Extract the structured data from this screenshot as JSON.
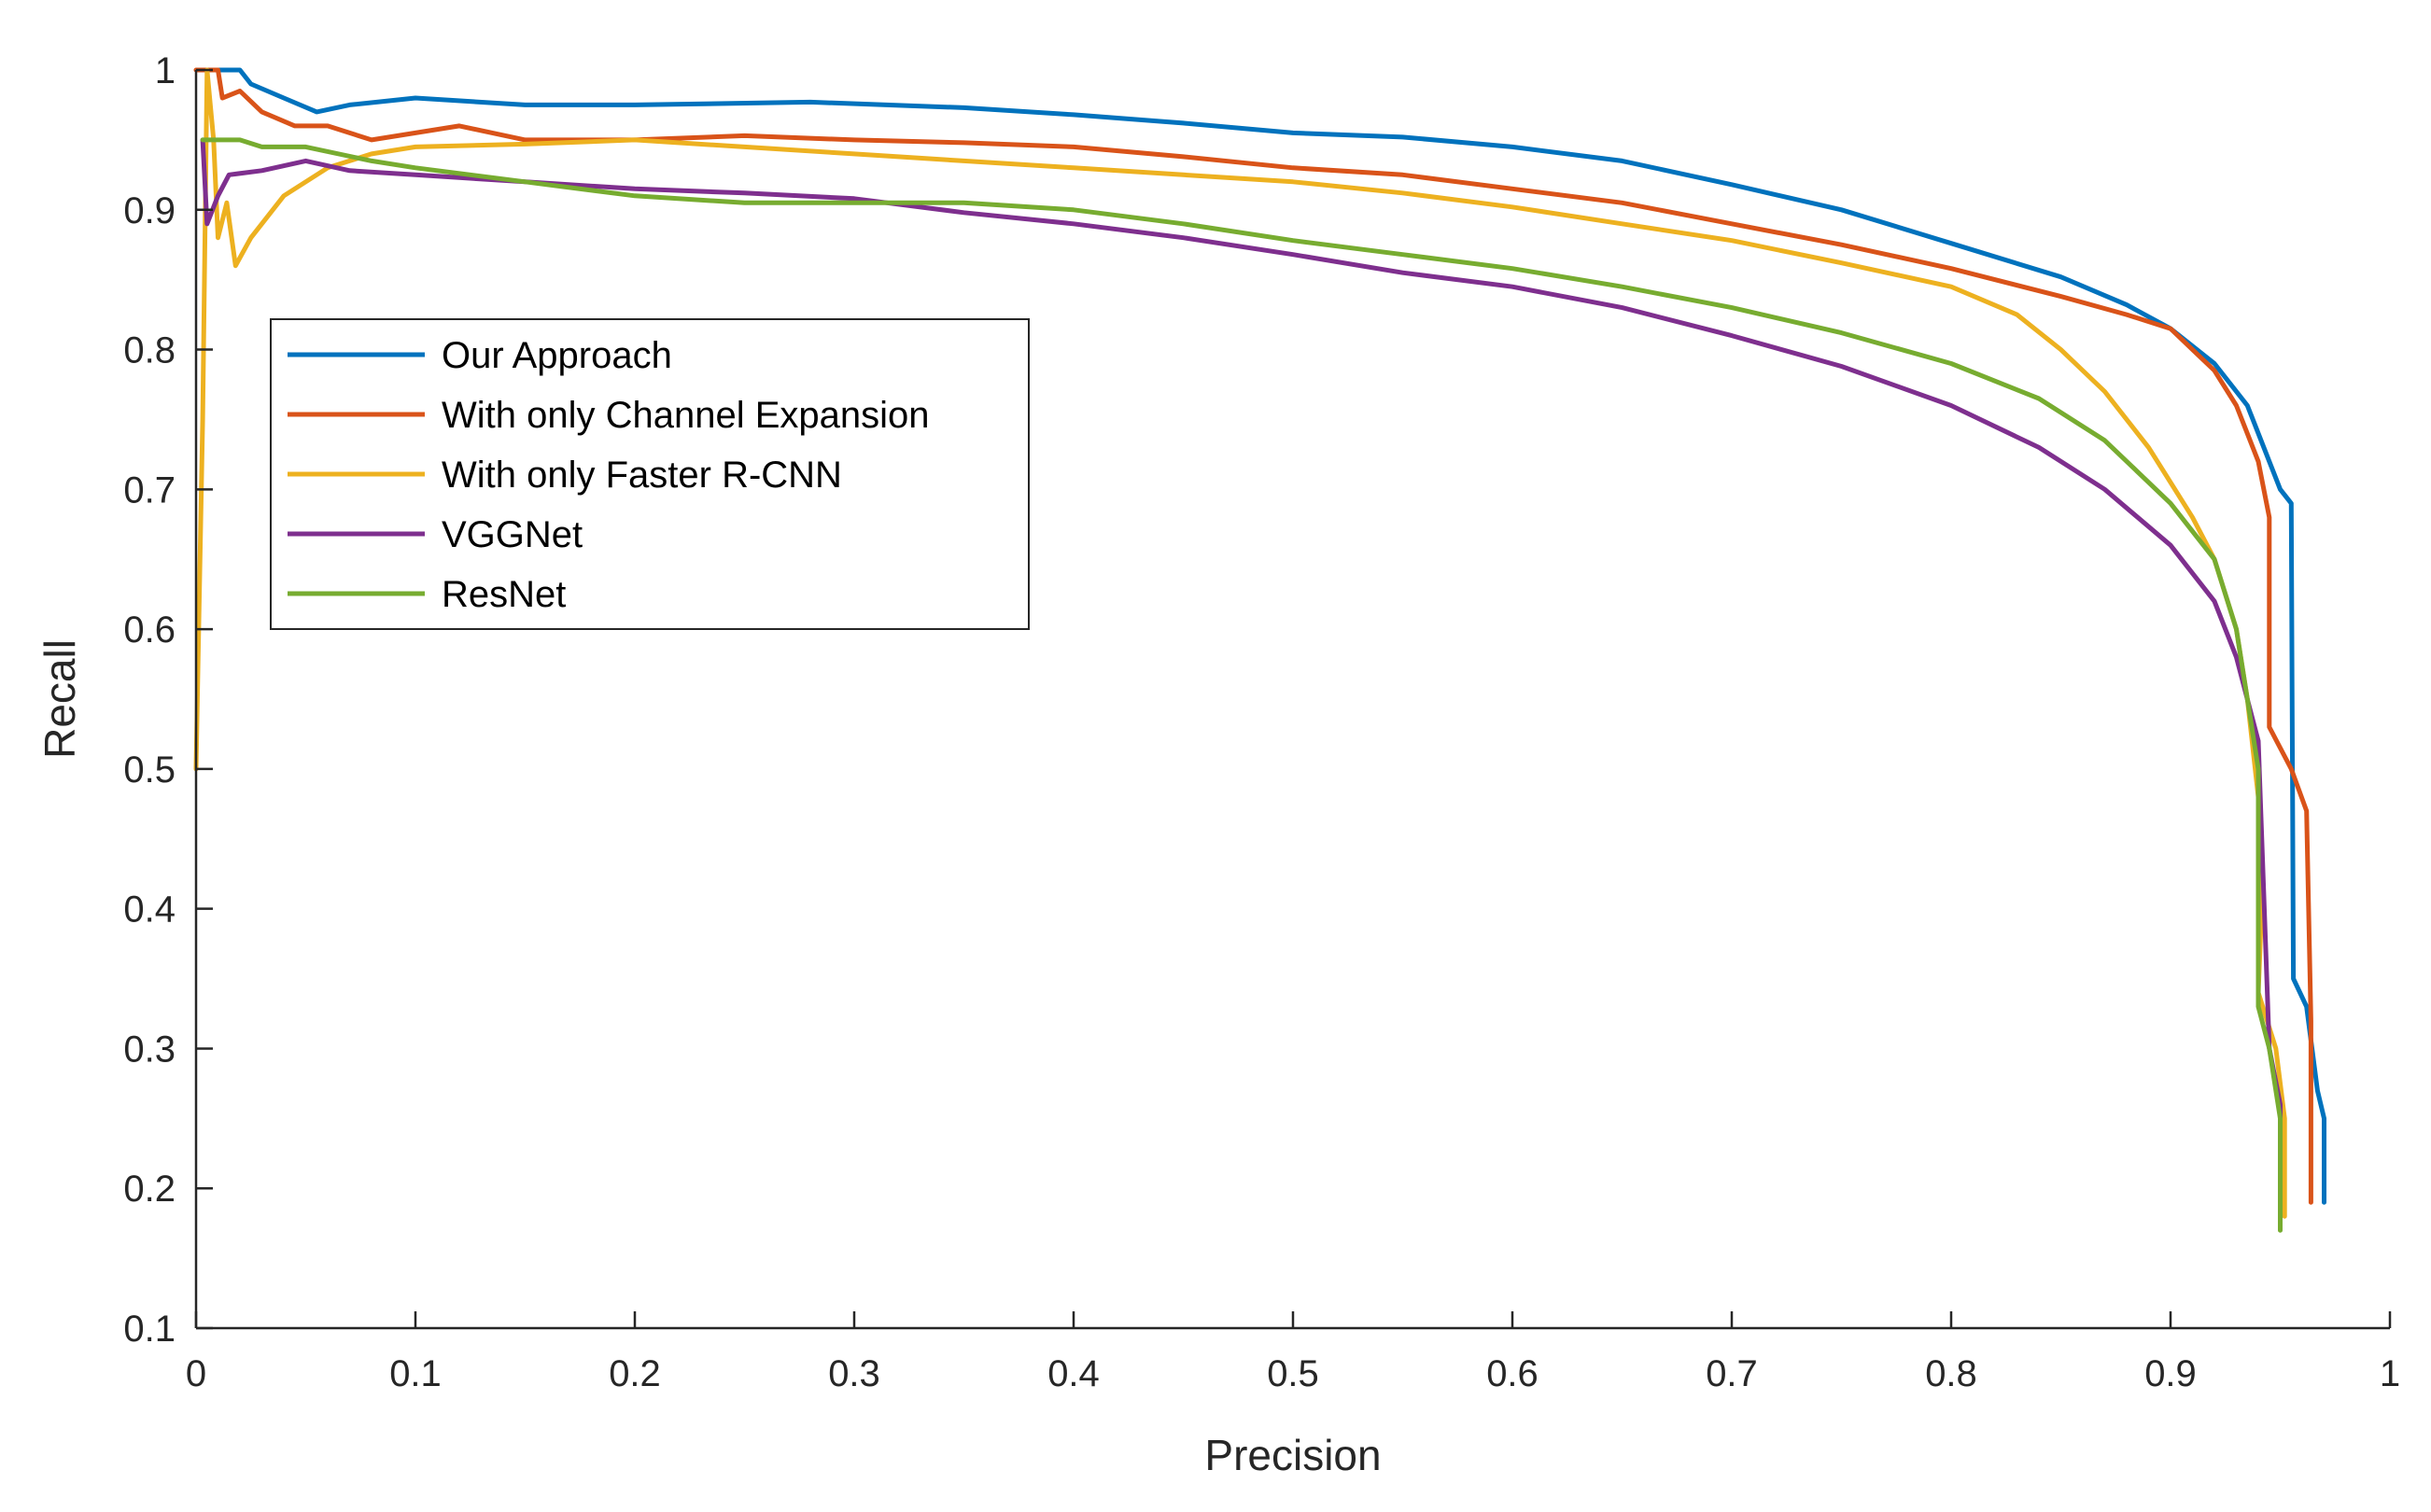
{
  "chart_data": {
    "type": "line",
    "title": "",
    "xlabel": "Precision",
    "ylabel": "Recall",
    "xlim": [
      0,
      1
    ],
    "ylim": [
      0.1,
      1
    ],
    "xticks": [
      0,
      0.1,
      0.2,
      0.3,
      0.4,
      0.5,
      0.6,
      0.7,
      0.8,
      0.9,
      1
    ],
    "xtick_labels": [
      "0",
      "0.1",
      "0.2",
      "0.3",
      "0.4",
      "0.5",
      "0.6",
      "0.7",
      "0.8",
      "0.9",
      "1"
    ],
    "yticks": [
      0.1,
      0.2,
      0.3,
      0.4,
      0.5,
      0.6,
      0.7,
      0.8,
      0.9,
      1
    ],
    "ytick_labels": [
      "0.1",
      "0.2",
      "0.3",
      "0.4",
      "0.5",
      "0.6",
      "0.7",
      "0.8",
      "0.9",
      "1"
    ],
    "grid": false,
    "legend_position": "upper-left",
    "series": [
      {
        "name": "Our Approach",
        "color": "#0072BD",
        "points": [
          [
            0.005,
            1.0
          ],
          [
            0.02,
            1.0
          ],
          [
            0.025,
            0.99
          ],
          [
            0.04,
            0.98
          ],
          [
            0.055,
            0.97
          ],
          [
            0.07,
            0.975
          ],
          [
            0.1,
            0.98
          ],
          [
            0.15,
            0.975
          ],
          [
            0.2,
            0.975
          ],
          [
            0.28,
            0.977
          ],
          [
            0.35,
            0.973
          ],
          [
            0.4,
            0.968
          ],
          [
            0.45,
            0.962
          ],
          [
            0.5,
            0.955
          ],
          [
            0.55,
            0.952
          ],
          [
            0.6,
            0.945
          ],
          [
            0.65,
            0.935
          ],
          [
            0.7,
            0.918
          ],
          [
            0.75,
            0.9
          ],
          [
            0.8,
            0.876
          ],
          [
            0.85,
            0.852
          ],
          [
            0.88,
            0.832
          ],
          [
            0.9,
            0.815
          ],
          [
            0.92,
            0.79
          ],
          [
            0.935,
            0.76
          ],
          [
            0.945,
            0.72
          ],
          [
            0.95,
            0.7
          ],
          [
            0.955,
            0.69
          ],
          [
            0.956,
            0.35
          ],
          [
            0.962,
            0.33
          ],
          [
            0.967,
            0.27
          ],
          [
            0.97,
            0.25
          ],
          [
            0.97,
            0.19
          ]
        ]
      },
      {
        "name": "With only Channel Expansion",
        "color": "#D95319",
        "points": [
          [
            0.0,
            1.0
          ],
          [
            0.01,
            1.0
          ],
          [
            0.012,
            0.98
          ],
          [
            0.02,
            0.985
          ],
          [
            0.03,
            0.97
          ],
          [
            0.045,
            0.96
          ],
          [
            0.06,
            0.96
          ],
          [
            0.08,
            0.95
          ],
          [
            0.1,
            0.955
          ],
          [
            0.12,
            0.96
          ],
          [
            0.15,
            0.95
          ],
          [
            0.2,
            0.95
          ],
          [
            0.25,
            0.953
          ],
          [
            0.3,
            0.95
          ],
          [
            0.35,
            0.948
          ],
          [
            0.4,
            0.945
          ],
          [
            0.45,
            0.938
          ],
          [
            0.5,
            0.93
          ],
          [
            0.55,
            0.925
          ],
          [
            0.6,
            0.915
          ],
          [
            0.65,
            0.905
          ],
          [
            0.7,
            0.89
          ],
          [
            0.75,
            0.875
          ],
          [
            0.8,
            0.858
          ],
          [
            0.85,
            0.838
          ],
          [
            0.88,
            0.825
          ],
          [
            0.9,
            0.815
          ],
          [
            0.92,
            0.785
          ],
          [
            0.93,
            0.76
          ],
          [
            0.94,
            0.72
          ],
          [
            0.945,
            0.68
          ],
          [
            0.945,
            0.53
          ],
          [
            0.955,
            0.5
          ],
          [
            0.962,
            0.47
          ],
          [
            0.964,
            0.32
          ],
          [
            0.964,
            0.19
          ]
        ]
      },
      {
        "name": "With only Faster R-CNN",
        "color": "#EDB120",
        "points": [
          [
            0.0,
            0.5
          ],
          [
            0.003,
            0.75
          ],
          [
            0.005,
            1.0
          ],
          [
            0.008,
            0.95
          ],
          [
            0.01,
            0.88
          ],
          [
            0.014,
            0.905
          ],
          [
            0.018,
            0.86
          ],
          [
            0.025,
            0.88
          ],
          [
            0.04,
            0.91
          ],
          [
            0.06,
            0.93
          ],
          [
            0.08,
            0.94
          ],
          [
            0.1,
            0.945
          ],
          [
            0.15,
            0.947
          ],
          [
            0.2,
            0.95
          ],
          [
            0.25,
            0.945
          ],
          [
            0.3,
            0.94
          ],
          [
            0.35,
            0.935
          ],
          [
            0.4,
            0.93
          ],
          [
            0.45,
            0.925
          ],
          [
            0.5,
            0.92
          ],
          [
            0.55,
            0.912
          ],
          [
            0.6,
            0.902
          ],
          [
            0.65,
            0.89
          ],
          [
            0.7,
            0.878
          ],
          [
            0.75,
            0.862
          ],
          [
            0.8,
            0.845
          ],
          [
            0.83,
            0.825
          ],
          [
            0.85,
            0.8
          ],
          [
            0.87,
            0.77
          ],
          [
            0.89,
            0.73
          ],
          [
            0.91,
            0.68
          ],
          [
            0.92,
            0.65
          ],
          [
            0.93,
            0.6
          ],
          [
            0.935,
            0.55
          ],
          [
            0.94,
            0.48
          ],
          [
            0.942,
            0.42
          ],
          [
            0.94,
            0.34
          ],
          [
            0.948,
            0.3
          ],
          [
            0.952,
            0.25
          ],
          [
            0.952,
            0.18
          ]
        ]
      },
      {
        "name": "VGGNet",
        "color": "#7E2F8E",
        "points": [
          [
            0.003,
            0.95
          ],
          [
            0.005,
            0.89
          ],
          [
            0.01,
            0.91
          ],
          [
            0.015,
            0.925
          ],
          [
            0.03,
            0.928
          ],
          [
            0.05,
            0.935
          ],
          [
            0.07,
            0.928
          ],
          [
            0.1,
            0.925
          ],
          [
            0.15,
            0.92
          ],
          [
            0.2,
            0.915
          ],
          [
            0.25,
            0.912
          ],
          [
            0.3,
            0.908
          ],
          [
            0.35,
            0.898
          ],
          [
            0.4,
            0.89
          ],
          [
            0.45,
            0.88
          ],
          [
            0.5,
            0.868
          ],
          [
            0.55,
            0.855
          ],
          [
            0.6,
            0.845
          ],
          [
            0.65,
            0.83
          ],
          [
            0.7,
            0.81
          ],
          [
            0.75,
            0.788
          ],
          [
            0.8,
            0.76
          ],
          [
            0.84,
            0.73
          ],
          [
            0.87,
            0.7
          ],
          [
            0.9,
            0.66
          ],
          [
            0.92,
            0.62
          ],
          [
            0.93,
            0.58
          ],
          [
            0.94,
            0.52
          ],
          [
            0.945,
            0.3
          ],
          [
            0.95,
            0.26
          ],
          [
            0.95,
            0.18
          ]
        ]
      },
      {
        "name": "ResNet",
        "color": "#77AC30",
        "points": [
          [
            0.003,
            0.95
          ],
          [
            0.02,
            0.95
          ],
          [
            0.03,
            0.945
          ],
          [
            0.05,
            0.945
          ],
          [
            0.08,
            0.935
          ],
          [
            0.1,
            0.93
          ],
          [
            0.15,
            0.92
          ],
          [
            0.2,
            0.91
          ],
          [
            0.25,
            0.905
          ],
          [
            0.3,
            0.905
          ],
          [
            0.35,
            0.905
          ],
          [
            0.4,
            0.9
          ],
          [
            0.45,
            0.89
          ],
          [
            0.5,
            0.878
          ],
          [
            0.55,
            0.868
          ],
          [
            0.6,
            0.858
          ],
          [
            0.65,
            0.845
          ],
          [
            0.7,
            0.83
          ],
          [
            0.75,
            0.812
          ],
          [
            0.8,
            0.79
          ],
          [
            0.84,
            0.765
          ],
          [
            0.87,
            0.735
          ],
          [
            0.9,
            0.69
          ],
          [
            0.92,
            0.65
          ],
          [
            0.93,
            0.6
          ],
          [
            0.935,
            0.55
          ],
          [
            0.94,
            0.5
          ],
          [
            0.94,
            0.33
          ],
          [
            0.945,
            0.3
          ],
          [
            0.95,
            0.25
          ],
          [
            0.95,
            0.17
          ]
        ]
      }
    ]
  }
}
